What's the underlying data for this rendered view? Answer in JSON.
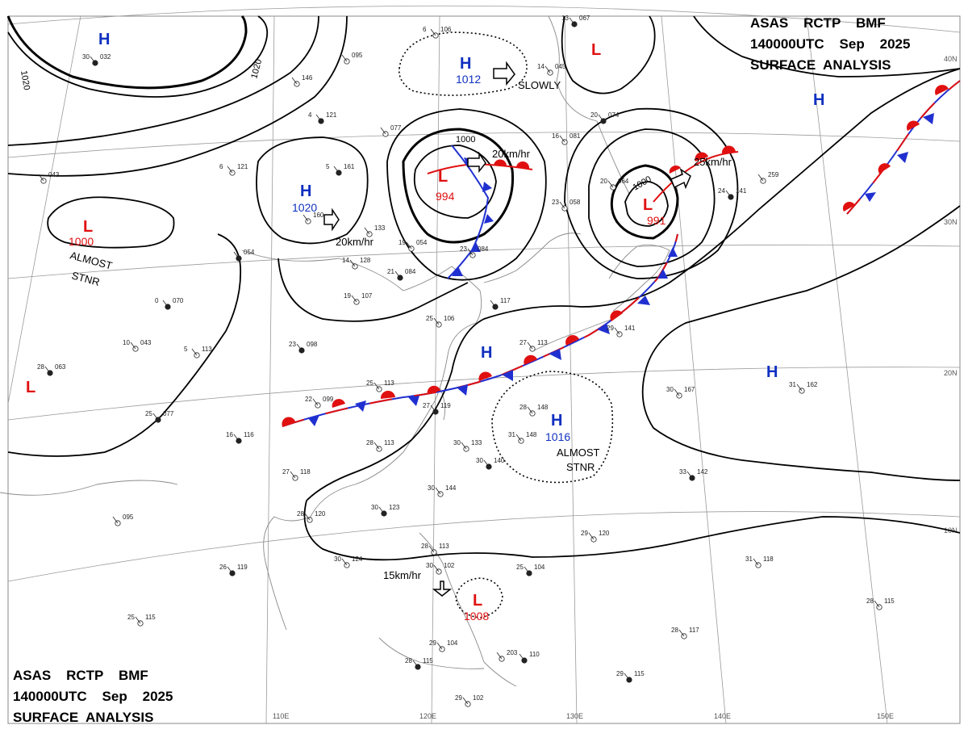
{
  "header_top": {
    "line1": "ASAS    RCTP    BMF",
    "line2": "140000UTC    Sep    2025",
    "line3": "SURFACE  ANALYSIS"
  },
  "header_bottom": {
    "line1": "ASAS    RCTP    BMF",
    "line2": "140000UTC    Sep    2025",
    "line3": "SURFACE  ANALYSIS"
  },
  "grid": {
    "latitude_labels": [
      "40N",
      "30N",
      "20N",
      "10N"
    ],
    "longitude_labels": [
      "110E",
      "120E",
      "130E",
      "140E",
      "150E"
    ]
  },
  "pressure_centers": [
    {
      "type": "H",
      "value": ""
    },
    {
      "type": "H",
      "value": "1012"
    },
    {
      "type": "L",
      "value": ""
    },
    {
      "type": "H",
      "value": ""
    },
    {
      "type": "H",
      "value": "1020"
    },
    {
      "type": "L",
      "value": "994"
    },
    {
      "type": "L",
      "value": "991"
    },
    {
      "type": "L",
      "value": "1000"
    },
    {
      "type": "H",
      "value": ""
    },
    {
      "type": "H",
      "value": "1016"
    },
    {
      "type": "H",
      "value": ""
    },
    {
      "type": "L",
      "value": ""
    },
    {
      "type": "L",
      "value": "1008"
    }
  ],
  "movements": [
    {
      "text": "SLOWLY"
    },
    {
      "text": "20km/hr"
    },
    {
      "text": "20km/hr"
    },
    {
      "text": "25km/hr"
    },
    {
      "text": "15km/hr"
    }
  ],
  "annotations": [
    {
      "line1": "ALMOST",
      "line2": "STNR"
    },
    {
      "line1": "ALMOST",
      "line2": "STNR"
    }
  ],
  "isobar_labels": [
    "1020",
    "1020",
    "1000",
    "1000"
  ],
  "stations": [
    {
      "t": "30",
      "p": "032"
    },
    {
      "t": "",
      "p": "095"
    },
    {
      "t": "6",
      "p": "106"
    },
    {
      "t": "13",
      "p": "067"
    },
    {
      "t": "14",
      "p": "045"
    },
    {
      "t": "",
      "p": "146"
    },
    {
      "t": "4",
      "p": "121"
    },
    {
      "t": "",
      "p": "077"
    },
    {
      "t": "16",
      "p": "081"
    },
    {
      "t": "20",
      "p": "074"
    },
    {
      "t": "6",
      "p": "121"
    },
    {
      "t": "",
      "p": "043"
    },
    {
      "t": "5",
      "p": "161"
    },
    {
      "t": "",
      "p": "160"
    },
    {
      "t": "",
      "p": "133"
    },
    {
      "t": "",
      "p": "054"
    },
    {
      "t": "14",
      "p": "128"
    },
    {
      "t": "19",
      "p": "054"
    },
    {
      "t": "21",
      "p": "084"
    },
    {
      "t": "23",
      "p": "084"
    },
    {
      "t": "20",
      "p": "064"
    },
    {
      "t": "24",
      "p": "141"
    },
    {
      "t": "",
      "p": "259"
    },
    {
      "t": "23",
      "p": "058"
    },
    {
      "t": "0",
      "p": "070"
    },
    {
      "t": "19",
      "p": "107"
    },
    {
      "t": "25",
      "p": "106"
    },
    {
      "t": "",
      "p": "117"
    },
    {
      "t": "10",
      "p": "043"
    },
    {
      "t": "5",
      "p": "113"
    },
    {
      "t": "23",
      "p": "098"
    },
    {
      "t": "27",
      "p": "113"
    },
    {
      "t": "29",
      "p": "141"
    },
    {
      "t": "28",
      "p": "063"
    },
    {
      "t": "30",
      "p": "167"
    },
    {
      "t": "31",
      "p": "162"
    },
    {
      "t": "25",
      "p": "077"
    },
    {
      "t": "22",
      "p": "099"
    },
    {
      "t": "25",
      "p": "113"
    },
    {
      "t": "27",
      "p": "119"
    },
    {
      "t": "28",
      "p": "148"
    },
    {
      "t": "31",
      "p": "148"
    },
    {
      "t": "16",
      "p": "116"
    },
    {
      "t": "28",
      "p": "113"
    },
    {
      "t": "30",
      "p": "133"
    },
    {
      "t": "30",
      "p": "140"
    },
    {
      "t": "27",
      "p": "118"
    },
    {
      "t": "30",
      "p": "144"
    },
    {
      "t": "33",
      "p": "142"
    },
    {
      "t": "",
      "p": "095"
    },
    {
      "t": "28",
      "p": "120"
    },
    {
      "t": "30",
      "p": "123"
    },
    {
      "t": "28",
      "p": "113"
    },
    {
      "t": "29",
      "p": "120"
    },
    {
      "t": "26",
      "p": "119"
    },
    {
      "t": "30",
      "p": "124"
    },
    {
      "t": "30",
      "p": "102"
    },
    {
      "t": "25",
      "p": "104"
    },
    {
      "t": "31",
      "p": "118"
    },
    {
      "t": "25",
      "p": "115"
    },
    {
      "t": "28",
      "p": "115"
    },
    {
      "t": "29",
      "p": "104"
    },
    {
      "t": "",
      "p": "203"
    },
    {
      "t": "",
      "p": "110"
    },
    {
      "t": "28",
      "p": "117"
    },
    {
      "t": "28",
      "p": "115"
    },
    {
      "t": "29",
      "p": "115"
    },
    {
      "t": "29",
      "p": "102"
    }
  ],
  "colors": {
    "high": "#1030c0",
    "low": "#e01010",
    "isobar": "#000000",
    "coast": "#8a8a8a",
    "grid": "#9a9a9a"
  }
}
